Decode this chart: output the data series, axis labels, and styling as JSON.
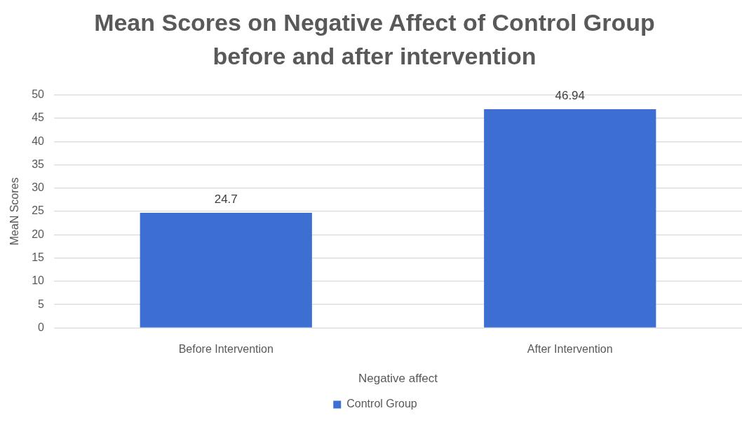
{
  "chart_data": {
    "type": "bar",
    "title": "Mean Scores on Negative Affect of Control Group before and after intervention",
    "xlabel": "Negative affect",
    "ylabel": "MeaN Scores",
    "categories": [
      "Before Intervention",
      "After Intervention"
    ],
    "series": [
      {
        "name": "Control Group",
        "color": "#3c6fd1",
        "values": [
          24.7,
          46.94
        ]
      }
    ],
    "ylim": [
      0,
      50
    ],
    "yticks": [
      0,
      5,
      10,
      15,
      20,
      25,
      30,
      35,
      40,
      45,
      50
    ],
    "grid": "y",
    "legend": "bottom",
    "data_labels": true
  }
}
